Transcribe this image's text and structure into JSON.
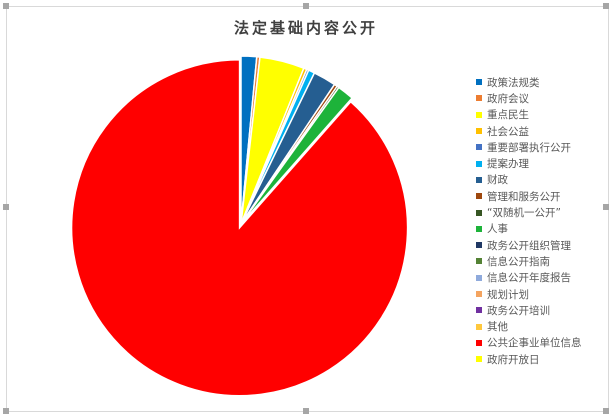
{
  "chart_data": {
    "type": "pie",
    "title": "法定基础内容公开",
    "unit": "percent (estimated)",
    "legend_position": "right",
    "start_angle": "top, clockwise",
    "slices": [
      {
        "label": "政策法规类",
        "value": 1.5,
        "color": "#0070c0"
      },
      {
        "label": "政府会议",
        "value": 0.3,
        "color": "#ed7d31"
      },
      {
        "label": "重点民生",
        "value": 4.3,
        "color": "#ffff00"
      },
      {
        "label": "社会公益",
        "value": 0.3,
        "color": "#ffc000"
      },
      {
        "label": "重要部署执行公开",
        "value": 0.2,
        "color": "#4472c4"
      },
      {
        "label": "提案办理",
        "value": 0.6,
        "color": "#00b0f0"
      },
      {
        "label": "财政",
        "value": 2.2,
        "color": "#255e91"
      },
      {
        "label": "管理和服务公开",
        "value": 0.3,
        "color": "#9e480e"
      },
      {
        "label": "“双随机一公开”",
        "value": 0.2,
        "color": "#375623"
      },
      {
        "label": "人事",
        "value": 1.6,
        "color": "#1db33a"
      },
      {
        "label": "政务公开组织管理",
        "value": 0,
        "color": "#203864"
      },
      {
        "label": "信息公开指南",
        "value": 0,
        "color": "#548235"
      },
      {
        "label": "信息公开年度报告",
        "value": 0,
        "color": "#8faadc"
      },
      {
        "label": "规划计划",
        "value": 0,
        "color": "#f4a460"
      },
      {
        "label": "政务公开培训",
        "value": 0,
        "color": "#7030a0"
      },
      {
        "label": "其他",
        "value": 0,
        "color": "#ffc83d"
      },
      {
        "label": "公共企事业单位信息",
        "value": 88.5,
        "color": "#ff0000"
      },
      {
        "label": "政府开放日",
        "value": 0,
        "color": "#ffff00"
      }
    ]
  }
}
